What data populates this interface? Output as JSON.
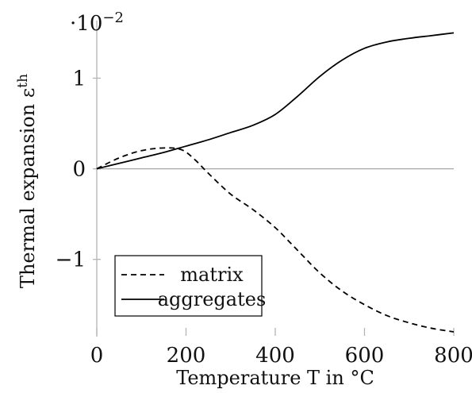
{
  "chart_data": {
    "type": "line",
    "xlabel": "Temperature T in °C",
    "ylabel": "Thermal expansion εth",
    "y_multiplier": "·10−2",
    "xlim": [
      0,
      800
    ],
    "ylim": [
      -1.8,
      1.6
    ],
    "xticks": [
      0,
      200,
      400,
      600,
      800
    ],
    "xtick_labels": [
      "0",
      "200",
      "400",
      "600",
      "800"
    ],
    "yticks": [
      -1,
      0,
      1
    ],
    "ytick_labels": [
      "−1",
      "0",
      "1"
    ],
    "zero_line": true,
    "grid": false,
    "legend_position": "bottom-left",
    "series": [
      {
        "name": "matrix",
        "style": "dashed",
        "color": "#000000",
        "x": [
          0,
          50,
          100,
          150,
          190,
          220,
          250,
          300,
          350,
          400,
          450,
          500,
          550,
          600,
          650,
          700,
          750,
          800
        ],
        "y": [
          0,
          0.12,
          0.2,
          0.23,
          0.21,
          0.1,
          -0.05,
          -0.28,
          -0.45,
          -0.65,
          -0.9,
          -1.15,
          -1.35,
          -1.5,
          -1.62,
          -1.7,
          -1.76,
          -1.8
        ]
      },
      {
        "name": "aggregates",
        "style": "solid",
        "color": "#000000",
        "x": [
          0,
          50,
          100,
          150,
          200,
          250,
          300,
          350,
          400,
          450,
          500,
          550,
          600,
          650,
          700,
          750,
          800
        ],
        "y": [
          0,
          0.06,
          0.12,
          0.18,
          0.25,
          0.32,
          0.4,
          0.48,
          0.6,
          0.8,
          1.02,
          1.2,
          1.33,
          1.4,
          1.44,
          1.47,
          1.5
        ]
      }
    ]
  }
}
